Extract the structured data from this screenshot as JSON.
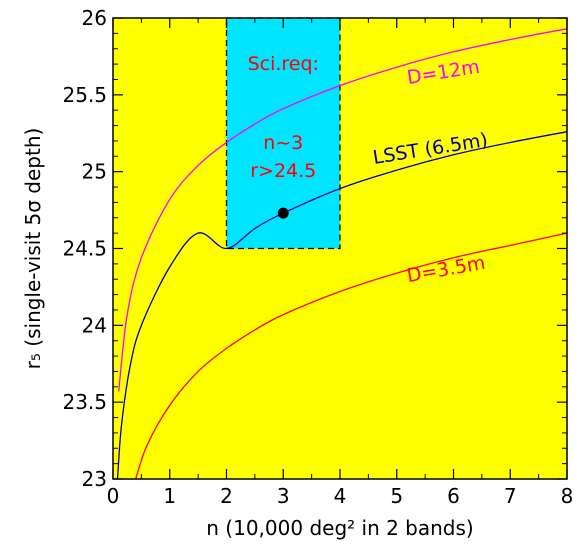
{
  "chart_data": {
    "type": "line",
    "xlabel": "n (10,000 deg² in 2 bands)",
    "ylabel": "r₅ (single-visit 5σ depth)",
    "xlim": [
      0,
      8
    ],
    "ylim": [
      23,
      26
    ],
    "xticks": [
      "0",
      "1",
      "2",
      "3",
      "4",
      "5",
      "6",
      "7",
      "8"
    ],
    "yticks": [
      "23",
      "23.5",
      "24",
      "24.5",
      "25",
      "25.5",
      "26"
    ],
    "background_color": "#ffff00",
    "grid": false,
    "series": [
      {
        "name": "D=12m",
        "color": "#ff00ff",
        "x": [
          0.1,
          0.25,
          0.5,
          1,
          1.5,
          2,
          2.5,
          3,
          4,
          5,
          6,
          7,
          8
        ],
        "y": [
          23.57,
          24.07,
          24.44,
          24.82,
          25.04,
          25.19,
          25.31,
          25.41,
          25.56,
          25.68,
          25.78,
          25.86,
          25.93
        ]
      },
      {
        "name": "LSST (6.5m)",
        "color": "#0000aa",
        "x": [
          0.08,
          0.15,
          0.3,
          0.5,
          1,
          1.5,
          2,
          2.5,
          3,
          4,
          5,
          6,
          7,
          8
        ],
        "y": [
          23.0,
          23.35,
          23.73,
          24.0,
          24.38,
          24.6,
          24.5,
          24.63,
          24.73,
          24.89,
          25.01,
          25.11,
          25.19,
          25.26
        ]
      },
      {
        "name": "D=3.5m",
        "color": "#ff0000",
        "x": [
          0.4,
          0.6,
          1,
          1.5,
          2,
          2.5,
          3,
          4,
          5,
          6,
          7,
          8
        ],
        "y": [
          23.0,
          23.22,
          23.48,
          23.7,
          23.85,
          23.97,
          24.07,
          24.22,
          24.34,
          24.44,
          24.52,
          24.6
        ]
      }
    ],
    "requirement_box": {
      "x": [
        2,
        4
      ],
      "y": [
        24.5,
        26
      ],
      "color": "#00e5ff",
      "label_lines": [
        "Sci.req:",
        "n~3",
        "r>24.5"
      ]
    },
    "marker": {
      "x": 3,
      "y": 24.73
    },
    "annotations": [
      {
        "text": "D=12m",
        "color": "#ff00ff",
        "x": 5.2,
        "y": 25.57
      },
      {
        "text": "LSST (6.5m)",
        "color": "#0000aa",
        "x": 4.6,
        "y": 25.05
      },
      {
        "text": "D=3.5m",
        "color": "#ff0000",
        "x": 5.2,
        "y": 24.28
      }
    ]
  }
}
